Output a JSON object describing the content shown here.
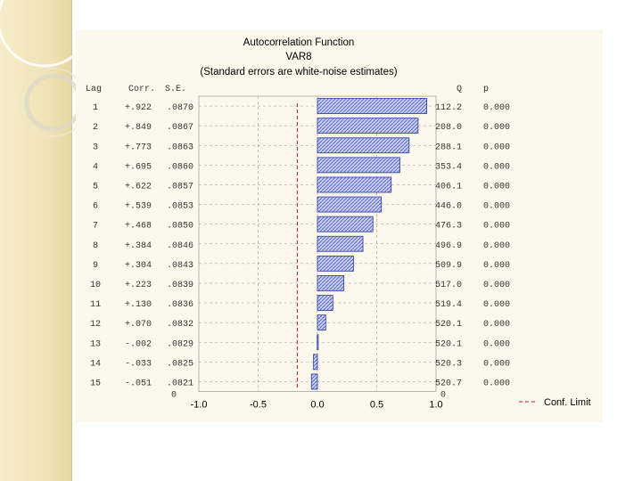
{
  "colors": {
    "background": "#fdf8ec",
    "bar_fill": "#c6cdea",
    "bar_hatch": "#4a56c4",
    "bar_stroke": "#2a3aa8",
    "conf_limit": "#c4161c",
    "grid": "#9a9a9a",
    "side_strip": "#f3e7bf"
  },
  "chart_data": {
    "type": "bar",
    "orientation": "horizontal",
    "title": "Autocorrelation Function",
    "subtitle": "VAR8",
    "note": "(Standard errors are white-noise estimates)",
    "column_headers": [
      "Lag",
      "Corr.",
      "S.E.",
      "Q",
      "p"
    ],
    "lags": [
      "1",
      "2",
      "3",
      "4",
      "5",
      "6",
      "7",
      "8",
      "9",
      "10",
      "11",
      "12",
      "13",
      "14",
      "15"
    ],
    "corr_labels": [
      "+.922",
      "+.849",
      "+.773",
      "+.695",
      "+.622",
      "+.539",
      "+.468",
      "+.384",
      "+.304",
      "+.223",
      "+.130",
      "+.070",
      "-.002",
      "-.033",
      "-.051"
    ],
    "values": [
      0.922,
      0.849,
      0.773,
      0.695,
      0.622,
      0.539,
      0.468,
      0.384,
      0.304,
      0.223,
      0.13,
      0.07,
      -0.002,
      -0.033,
      -0.051
    ],
    "se_labels": [
      ".0870",
      ".0867",
      ".0863",
      ".0860",
      ".0857",
      ".0853",
      ".0850",
      ".0846",
      ".0843",
      ".0839",
      ".0836",
      ".0832",
      ".0829",
      ".0825",
      ".0821"
    ],
    "q_labels": [
      "112.2",
      "208.0",
      "288.1",
      "353.4",
      "406.1",
      "446.0",
      "476.3",
      "496.9",
      "509.9",
      "517.0",
      "519.4",
      "520.1",
      "520.1",
      "520.3",
      "520.7"
    ],
    "p_labels": [
      "0.000",
      "0.000",
      "0.000",
      "0.000",
      "0.000",
      "0.000",
      "0.000",
      "0.000",
      "0.000",
      "0.000",
      "0.000",
      "0.000",
      "0.000",
      "0.000",
      "0.000"
    ],
    "conf_limit": [
      -0.17,
      -0.17,
      -0.17,
      -0.17,
      -0.17,
      -0.17,
      -0.17,
      -0.17,
      -0.17,
      -0.17,
      -0.17,
      -0.17,
      -0.17,
      -0.17,
      -0.17
    ],
    "xlim": [
      -1.0,
      1.0
    ],
    "x_ticks": [
      -1.0,
      -0.5,
      0.0,
      0.5,
      1.0
    ],
    "x_tick_labels": [
      "-1.0",
      "-0.5",
      "0.0",
      "0.5",
      "1.0"
    ],
    "zero_labels": [
      "0",
      "0"
    ],
    "legend": {
      "label": "Conf. Limit",
      "placement": "bottom-right"
    },
    "grid": true
  }
}
